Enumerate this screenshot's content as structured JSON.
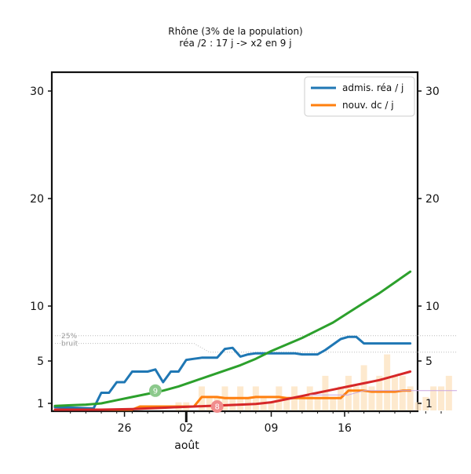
{
  "chart_data": {
    "type": "line",
    "title": "Rhône (3% de la population)",
    "subtitle": "réa /2 : 17 j -> x2 en 9 j",
    "xlabel": "août",
    "x_tick_labels": [
      "26",
      "02",
      "09",
      "16"
    ],
    "y_tick_labels": [
      "1",
      "5",
      "10",
      "20",
      "30"
    ],
    "ylim": [
      0,
      32
    ],
    "xlim": [
      0,
      52
    ],
    "grid": false,
    "legend_position": "top-right",
    "colors": {
      "adm": "#1f77b4",
      "dc": "#ff7f0e",
      "green": "#2ca02c",
      "red": "#d62728",
      "bars": "#fde3c2",
      "purple": "#c9a6df",
      "ref": "#bbbbbb"
    },
    "ref_lines": [
      {
        "label": "25%",
        "values": [
          [
            0,
            7.3
          ],
          [
            52,
            7.3
          ]
        ]
      },
      {
        "label": "bruit",
        "values": [
          [
            0,
            6.6
          ],
          [
            18,
            6.6
          ],
          [
            20,
            5.8
          ],
          [
            52,
            5.8
          ]
        ]
      }
    ],
    "series": [
      {
        "key": "adm",
        "name": "admis. réa / j",
        "x": [
          0,
          5,
          6,
          7,
          8,
          9,
          10,
          11,
          12,
          13,
          14,
          15,
          16,
          17,
          18,
          19,
          20,
          21,
          22,
          23,
          24,
          25,
          26,
          27,
          28,
          29,
          30,
          31,
          32,
          33,
          34,
          35,
          36,
          37,
          38,
          39,
          40,
          41,
          42,
          43,
          44,
          45,
          46
        ],
        "values": [
          0.4,
          0.2,
          2,
          2,
          3,
          3,
          4,
          4,
          4,
          4.2,
          3,
          4,
          4,
          5.1,
          5.2,
          5.3,
          5.3,
          5.3,
          6.1,
          6.2,
          5.4,
          5.6,
          5.7,
          5.7,
          5.7,
          5.7,
          5.7,
          5.7,
          5.6,
          5.6,
          5.6,
          6,
          6.5,
          7,
          7.2,
          7.2,
          6.6,
          6.6,
          6.6,
          6.6,
          6.6,
          6.6,
          6.6
        ]
      },
      {
        "key": "dc",
        "name": "nouv. dc / j",
        "x": [
          0,
          9,
          10,
          11,
          12,
          13,
          14,
          15,
          16,
          17,
          18,
          19,
          20,
          21,
          22,
          23,
          24,
          25,
          26,
          27,
          28,
          29,
          30,
          31,
          32,
          33,
          34,
          35,
          36,
          37,
          38,
          39,
          40,
          41,
          42,
          43,
          44,
          45,
          46
        ],
        "values": [
          0,
          0,
          0,
          0.5,
          0.5,
          0.5,
          0.5,
          0.5,
          0.5,
          0.5,
          0.5,
          1.6,
          1.6,
          1.6,
          1.5,
          1.5,
          1.5,
          1.5,
          1.6,
          1.6,
          1.6,
          1.6,
          1.5,
          1.5,
          1.5,
          1.5,
          1.5,
          1.5,
          1.5,
          1.5,
          2.2,
          2.2,
          2.2,
          2.1,
          2.1,
          2.1,
          2.1,
          2.2,
          2.2
        ]
      },
      {
        "key": "green",
        "x": [
          0,
          2,
          4,
          6,
          8,
          10,
          12,
          14,
          16,
          18,
          20,
          22,
          24,
          26,
          28,
          30,
          32,
          34,
          36,
          38,
          40,
          42,
          44,
          46
        ],
        "values": [
          0.6,
          0.7,
          0.8,
          1,
          1.3,
          1.6,
          1.9,
          2.2,
          2.6,
          3.1,
          3.6,
          4.1,
          4.6,
          5.2,
          5.9,
          6.5,
          7.1,
          7.8,
          8.5,
          9.4,
          10.3,
          11.2,
          12.2,
          13.2
        ]
      },
      {
        "key": "red",
        "x": [
          0,
          2,
          4,
          6,
          8,
          10,
          12,
          14,
          16,
          18,
          20,
          22,
          24,
          26,
          28,
          30,
          32,
          34,
          36,
          38,
          40,
          42,
          44,
          46
        ],
        "values": [
          0,
          0,
          0,
          0,
          0.05,
          0.1,
          0.2,
          0.3,
          0.4,
          0.5,
          0.6,
          0.7,
          0.8,
          0.9,
          1.1,
          1.4,
          1.7,
          2,
          2.3,
          2.6,
          2.9,
          3.2,
          3.6,
          4
        ]
      },
      {
        "key": "purple",
        "x": [
          33,
          38,
          40,
          52
        ],
        "values": [
          1.8,
          1.8,
          2.2,
          2.2
        ]
      }
    ],
    "bars": {
      "x": [
        16,
        17,
        19,
        20,
        21,
        22,
        23,
        24,
        25,
        26,
        27,
        28,
        29,
        30,
        31,
        32,
        33,
        34,
        35,
        36,
        37,
        38,
        39,
        40,
        41,
        42,
        43,
        44,
        45,
        46,
        47,
        48,
        49,
        50,
        51
      ],
      "values": [
        0.5,
        0.5,
        2,
        1,
        1,
        2,
        1,
        2,
        1,
        2,
        1,
        0.5,
        2,
        1,
        2,
        1,
        2,
        1,
        3,
        1,
        2,
        3,
        2,
        4,
        2,
        3,
        5,
        3,
        3,
        2,
        0.5,
        1,
        2,
        2,
        3
      ]
    },
    "badges": [
      {
        "label": "9",
        "x": 13,
        "y": 2.2
      },
      {
        "label": "8",
        "x": 21,
        "y": 0.5
      }
    ]
  }
}
